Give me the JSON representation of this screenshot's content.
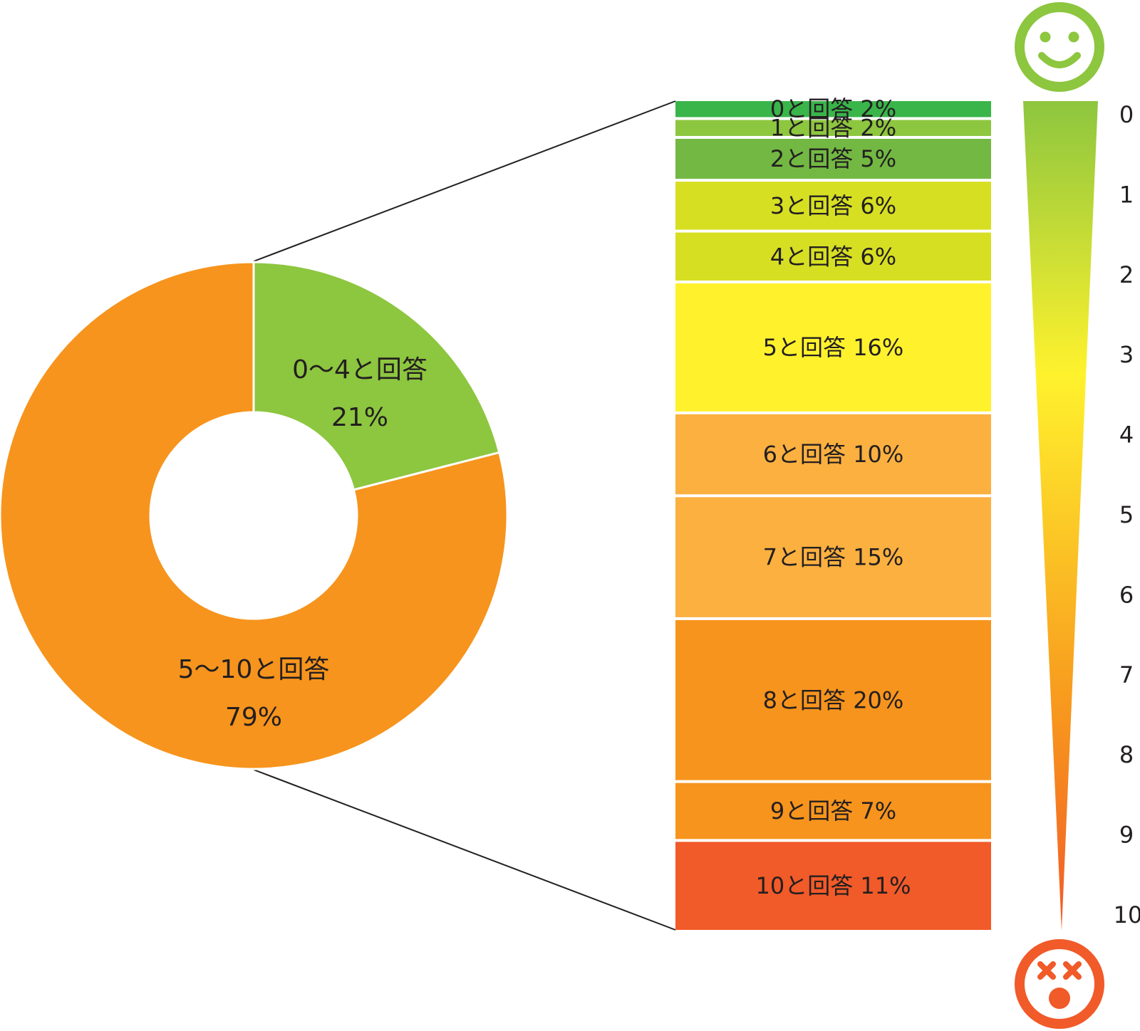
{
  "chart_data": [
    {
      "type": "pie",
      "title": "",
      "slices": [
        {
          "label_line1": "0〜4と回答",
          "label_line2": "21%",
          "value": 21,
          "color": "#8dc63f"
        },
        {
          "label_line1": "5〜10と回答",
          "label_line2": "79%",
          "value": 79,
          "color": "#f7941d"
        }
      ]
    },
    {
      "type": "bar",
      "stacked": true,
      "orientation": "vertical",
      "categories": [
        "0",
        "1",
        "2",
        "3",
        "4",
        "5",
        "6",
        "7",
        "8",
        "9",
        "10"
      ],
      "values": [
        2,
        2,
        5,
        6,
        6,
        16,
        10,
        15,
        20,
        7,
        11
      ],
      "labels": [
        "0と回答 2%",
        "1と回答 2%",
        "2と回答 5%",
        "3と回答 6%",
        "4と回答 6%",
        "5と回答 16%",
        "6と回答 10%",
        "7と回答 15%",
        "8と回答 20%",
        "9と回答 7%",
        "10と回答 11%"
      ],
      "colors": [
        "#39b54a",
        "#8dc63f",
        "#72b843",
        "#d7df23",
        "#d7df23",
        "#fff22d",
        "#fbb040",
        "#fbb040",
        "#f7941d",
        "#f7941d",
        "#f15a29"
      ]
    }
  ],
  "scale": {
    "ticks": [
      "0",
      "1",
      "2",
      "3",
      "4",
      "5",
      "6",
      "7",
      "8",
      "9",
      "10"
    ],
    "top_color": "#8dc63f",
    "bottom_color": "#f15a29",
    "top_icon": "smiley-face-icon",
    "bottom_icon": "dizzy-face-icon"
  },
  "colors": {
    "connector": "#231f20",
    "gradient": [
      "#8dc63f",
      "#fff22d",
      "#f7941d",
      "#f15a29"
    ]
  }
}
